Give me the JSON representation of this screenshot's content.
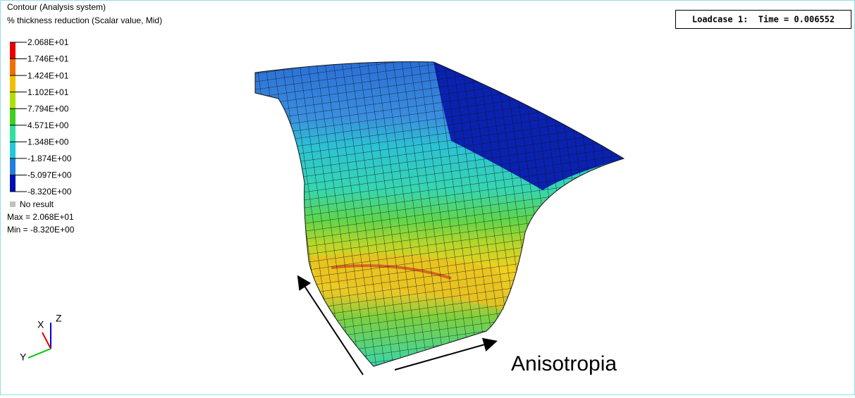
{
  "header": {
    "title": "Contour (Analysis system)",
    "subtitle": "% thickness reduction (Scalar value, Mid)"
  },
  "legend": {
    "labels": [
      "2.068E+01",
      "1.746E+01",
      "1.424E+01",
      "1.102E+01",
      "7.794E+00",
      "4.571E+00",
      "1.348E+00",
      "-1.874E+00",
      "-5.097E+00",
      "-8.320E+00"
    ],
    "no_result": "No result",
    "max": "Max = 2.068E+01",
    "min": "Min = -8.320E+00"
  },
  "status": "Loadcase 1:  Time = 0.006552",
  "axes": {
    "x": "X",
    "y": "Y",
    "z": "Z"
  },
  "annotation": "Anisotropia"
}
